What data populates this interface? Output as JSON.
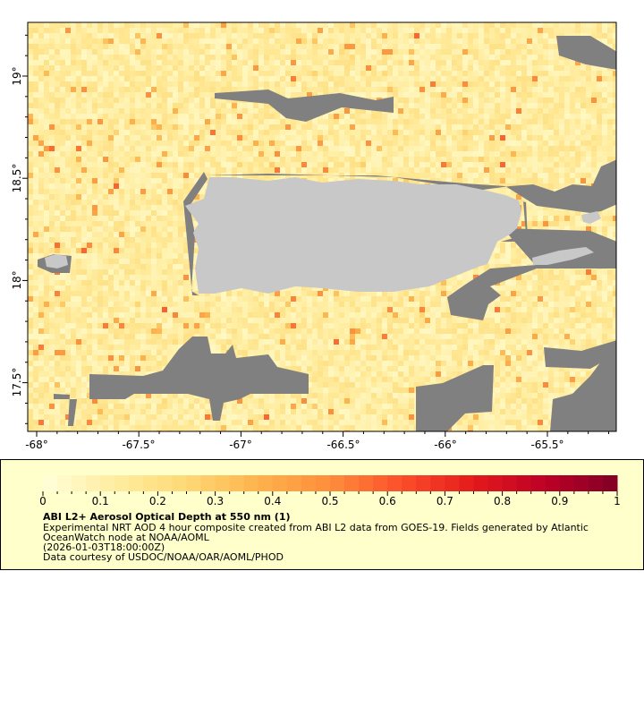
{
  "map": {
    "longitude_ticks": [
      "-68°",
      "-67.5°",
      "-67°",
      "-66.5°",
      "-66°",
      "-65.5°"
    ],
    "latitude_ticks": [
      "19°",
      "18.5°",
      "18°",
      "17.5°"
    ],
    "lon_range": [
      -68.05,
      -65.2
    ],
    "lat_range": [
      17.24,
      19.26
    ],
    "colors": {
      "land": "#c8c8c8",
      "no_data": "#808080",
      "background": "#ffffff"
    }
  },
  "legend": {
    "colorbar_ticks": [
      "0",
      "0.1",
      "0.2",
      "0.3",
      "0.4",
      "0.5",
      "0.6",
      "0.7",
      "0.8",
      "0.9",
      "1"
    ],
    "colorbar_range": [
      0,
      1
    ],
    "colormap": [
      "#ffffd9",
      "#ffeda0",
      "#fed976",
      "#feb24c",
      "#fd8d3c",
      "#fc4e2a",
      "#e31a1c",
      "#bd0026",
      "#800026"
    ],
    "title": "ABI L2+ Aerosol Optical Depth at 550 nm (1)",
    "description_line1": "Experimental NRT AOD 4 hour composite created from ABI L2 data from GOES-19. Fields generated by Atlantic",
    "description_line2": "OceanWatch node at NOAA/AOML",
    "time": "(2026-01-03T18:00:00Z)",
    "credit": "Data courtesy of USDOC/NOAA/OAR/AOML/PHOD"
  }
}
